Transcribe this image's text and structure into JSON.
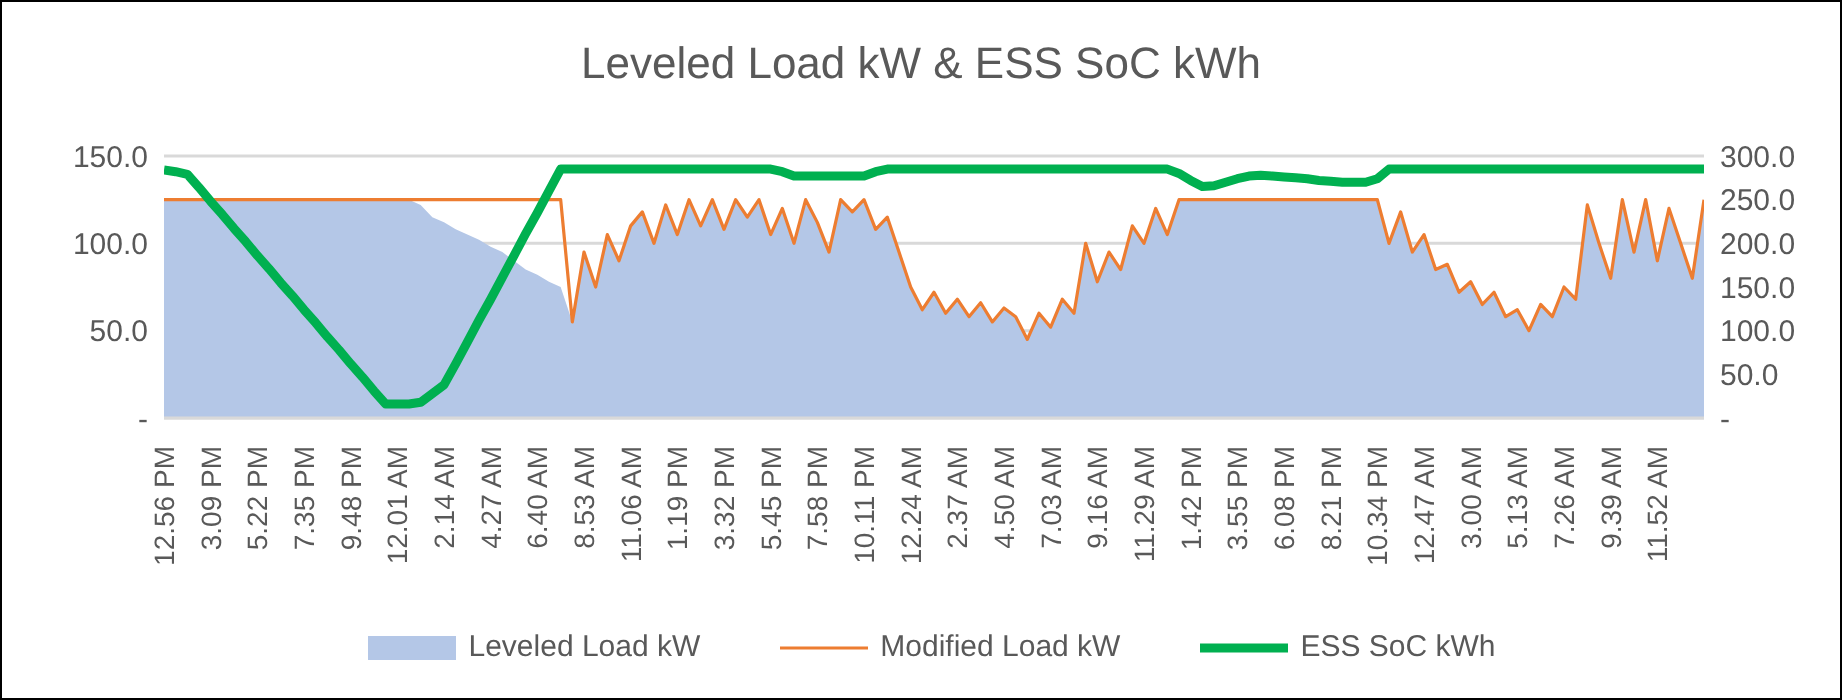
{
  "chart_data": {
    "type": "line",
    "title": "Leveled Load kW & ESS SoC kWh",
    "categories": [
      "12.56 PM",
      null,
      null,
      null,
      "3.09 PM",
      null,
      null,
      null,
      "5.22 PM",
      null,
      null,
      null,
      "7.35 PM",
      null,
      null,
      null,
      "9.48 PM",
      null,
      null,
      null,
      "12.01 AM",
      null,
      null,
      null,
      "2.14 AM",
      null,
      null,
      null,
      "4.27 AM",
      null,
      null,
      null,
      "6.40 AM",
      null,
      null,
      null,
      "8.53 AM",
      null,
      null,
      null,
      "11.06 AM",
      null,
      null,
      null,
      "1.19 PM",
      null,
      null,
      null,
      "3.32 PM",
      null,
      null,
      null,
      "5.45 PM",
      null,
      null,
      null,
      "7.58 PM",
      null,
      null,
      null,
      "10.11 PM",
      null,
      null,
      null,
      "12.24 AM",
      null,
      null,
      null,
      "2.37 AM",
      null,
      null,
      null,
      "4.50 AM",
      null,
      null,
      null,
      "7.03 AM",
      null,
      null,
      null,
      "9.16 AM",
      null,
      null,
      null,
      "11.29 AM",
      null,
      null,
      null,
      "1.42 PM",
      null,
      null,
      null,
      "3.55 PM",
      null,
      null,
      null,
      "6.08 PM",
      null,
      null,
      null,
      "8.21 PM",
      null,
      null,
      null,
      "10.34 PM",
      null,
      null,
      null,
      "12.47 AM",
      null,
      null,
      null,
      "3.00 AM",
      null,
      null,
      null,
      "5.13 AM",
      null,
      null,
      null,
      "7.26 AM",
      null,
      null,
      null,
      "9.39 AM",
      null,
      null,
      null,
      "11.52 AM",
      null,
      null,
      null,
      null
    ],
    "series": [
      {
        "name": "Leveled Load kW",
        "type": "area",
        "color": "#b4c7e7",
        "values": [
          125,
          125,
          125,
          125,
          125,
          125,
          125,
          125,
          125,
          125,
          125,
          125,
          125,
          125,
          125,
          125,
          125,
          125,
          125,
          125,
          125,
          125,
          122,
          115,
          112,
          108,
          105,
          102,
          98,
          95,
          90,
          85,
          82,
          78,
          75,
          55,
          95,
          75,
          105,
          90,
          110,
          118,
          100,
          122,
          105,
          125,
          110,
          125,
          108,
          125,
          115,
          125,
          105,
          120,
          100,
          125,
          112,
          95,
          125,
          118,
          125,
          108,
          115,
          95,
          75,
          62,
          72,
          60,
          68,
          58,
          66,
          55,
          63,
          58,
          45,
          60,
          52,
          68,
          60,
          100,
          78,
          95,
          85,
          110,
          100,
          120,
          105,
          125,
          125,
          125,
          125,
          125,
          125,
          125,
          125,
          125,
          125,
          125,
          125,
          125,
          125,
          125,
          125,
          125,
          125,
          100,
          118,
          95,
          105,
          85,
          88,
          72,
          78,
          65,
          72,
          58,
          62,
          50,
          65,
          58,
          75,
          68,
          122,
          100,
          80,
          125,
          95,
          125,
          90,
          120,
          100,
          80,
          125
        ]
      },
      {
        "name": "Modified Load kW",
        "color": "#ed7d31",
        "values": [
          125,
          125,
          125,
          125,
          125,
          125,
          125,
          125,
          125,
          125,
          125,
          125,
          125,
          125,
          125,
          125,
          125,
          125,
          125,
          125,
          125,
          125,
          125,
          125,
          125,
          125,
          125,
          125,
          125,
          125,
          125,
          125,
          125,
          125,
          125,
          55,
          95,
          75,
          105,
          90,
          110,
          118,
          100,
          122,
          105,
          125,
          110,
          125,
          108,
          125,
          115,
          125,
          105,
          120,
          100,
          125,
          112,
          95,
          125,
          118,
          125,
          108,
          115,
          95,
          75,
          62,
          72,
          60,
          68,
          58,
          66,
          55,
          63,
          58,
          45,
          60,
          52,
          68,
          60,
          100,
          78,
          95,
          85,
          110,
          100,
          120,
          105,
          125,
          125,
          125,
          125,
          125,
          125,
          125,
          125,
          125,
          125,
          125,
          125,
          125,
          125,
          125,
          125,
          125,
          125,
          100,
          118,
          95,
          105,
          85,
          88,
          72,
          78,
          65,
          72,
          58,
          62,
          50,
          65,
          58,
          75,
          68,
          122,
          100,
          80,
          125,
          95,
          125,
          90,
          120,
          100,
          80,
          125
        ]
      },
      {
        "name": "ESS SoC kWh",
        "axis": "y2",
        "color": "#00b050",
        "values": [
          284,
          282,
          279,
          264,
          248,
          233,
          217,
          202,
          186,
          171,
          155,
          140,
          124,
          109,
          93,
          78,
          62,
          47,
          31,
          16,
          16,
          16,
          18,
          28,
          38,
          62,
          87,
          112,
          136,
          161,
          186,
          211,
          235,
          260,
          285,
          285,
          285,
          285,
          285,
          285,
          285,
          285,
          285,
          285,
          285,
          285,
          285,
          285,
          285,
          285,
          285,
          285,
          285,
          282,
          277,
          277,
          277,
          277,
          277,
          277,
          277,
          282,
          285,
          285,
          285,
          285,
          285,
          285,
          285,
          285,
          285,
          285,
          285,
          285,
          285,
          285,
          285,
          285,
          285,
          285,
          285,
          285,
          285,
          285,
          285,
          285,
          285,
          280,
          272,
          265,
          266,
          270,
          274,
          277,
          278,
          277,
          276,
          275,
          274,
          272,
          271,
          270,
          270,
          270,
          274,
          285,
          285,
          285,
          285,
          285,
          285,
          285,
          285,
          285,
          285,
          285,
          285,
          285,
          285,
          285,
          285,
          285,
          285,
          285,
          285,
          285,
          285,
          285,
          285,
          285,
          285,
          285,
          285
        ]
      }
    ],
    "ylim": [
      0,
      150
    ],
    "yticks": [
      {
        "value": 0,
        "label": "-"
      },
      {
        "value": 50,
        "label": "50.0"
      },
      {
        "value": 100,
        "label": "100.0"
      },
      {
        "value": 150,
        "label": "150.0"
      }
    ],
    "y2lim": [
      0,
      300
    ],
    "y2ticks": [
      {
        "value": 0,
        "label": "-"
      },
      {
        "value": 50,
        "label": "50.0"
      },
      {
        "value": 100,
        "label": "100.0"
      },
      {
        "value": 150,
        "label": "150.0"
      },
      {
        "value": 200,
        "label": "200.0"
      },
      {
        "value": 250,
        "label": "250.0"
      },
      {
        "value": 300,
        "label": "300.0"
      }
    ],
    "grid": "y",
    "legend": "bottom"
  }
}
